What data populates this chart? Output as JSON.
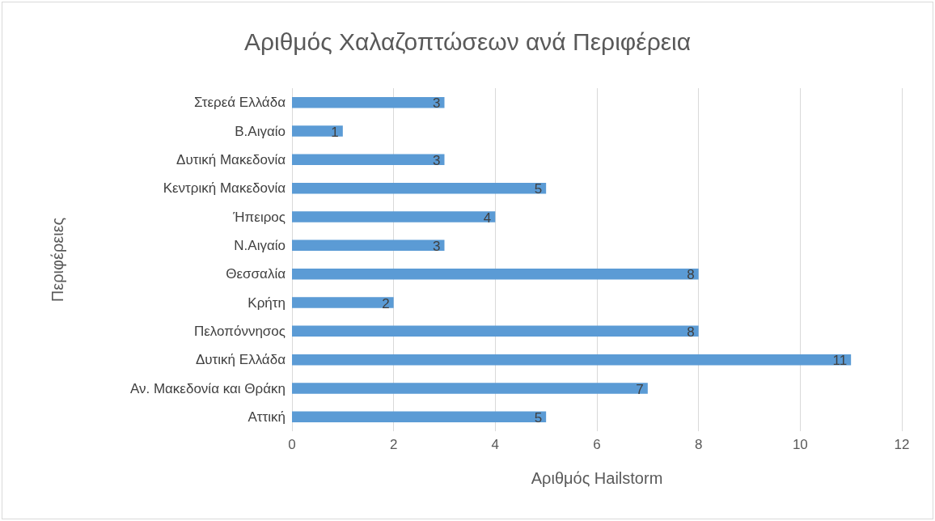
{
  "chart_data": {
    "type": "bar",
    "orientation": "horizontal",
    "title": "Αριθμός Χαλαζοπτώσεων ανά Περιφέρεια",
    "xlabel": "Αριθμός Hailstorm",
    "ylabel": "Περιφέρειες",
    "categories": [
      "Στερεά Ελλάδα",
      "Β.Αιγαίο",
      "Δυτική Μακεδονία",
      "Κεντρική Μακεδονία",
      "Ήπειρος",
      "Ν.Αιγαίο",
      "Θεσσαλία",
      "Κρήτη",
      "Πελοπόννησος",
      "Δυτική Ελλάδα",
      "Αν. Μακεδονία και Θράκη",
      "Αττική"
    ],
    "values": [
      3,
      1,
      3,
      5,
      4,
      3,
      8,
      2,
      8,
      11,
      7,
      5
    ],
    "color": "#5b9bd5",
    "xlim": [
      0,
      12
    ],
    "xticks": [
      0,
      2,
      4,
      6,
      8,
      10,
      12
    ],
    "grid": "x",
    "data_labels": true
  }
}
